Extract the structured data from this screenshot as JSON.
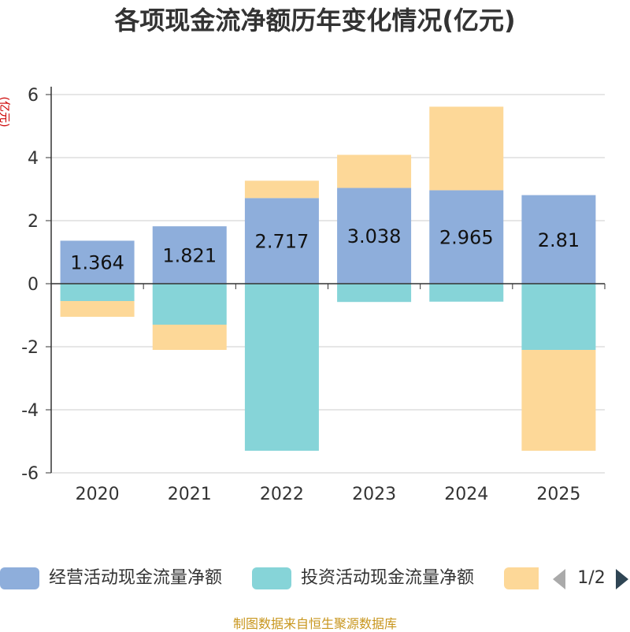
{
  "chart_data": {
    "type": "bar",
    "stacked": true,
    "title": "各项现金流净额历年变化情况(亿元)",
    "ylabel": "(亿元)",
    "ylim": [
      -6,
      6
    ],
    "yticks": [
      6,
      4,
      2,
      0,
      -2,
      -4,
      -6
    ],
    "ytick_labels": [
      "6",
      "4",
      "2",
      "0",
      "-2",
      "-4",
      "-6"
    ],
    "grid": true,
    "categories": [
      "2020",
      "2021",
      "2022",
      "2023",
      "2024",
      "2025"
    ],
    "series": [
      {
        "name": "经营活动现金流量净额",
        "color": "#8eaedb",
        "values": [
          1.364,
          1.821,
          2.717,
          3.038,
          2.965,
          2.81
        ],
        "labels": [
          "1.364",
          "1.821",
          "2.717",
          "3.038",
          "2.965",
          "2.81"
        ]
      },
      {
        "name": "投资活动现金流量净额",
        "color": "#86d4d8",
        "values": [
          -0.55,
          -1.3,
          -5.3,
          -0.58,
          -0.57,
          -2.1
        ]
      },
      {
        "name": "",
        "color": "#fdd898",
        "values": [
          -0.5,
          -0.8,
          0.55,
          1.05,
          2.65,
          -3.2
        ]
      }
    ]
  },
  "legend": {
    "items": [
      "经营活动现金流量净额",
      "投资活动现金流量净额",
      ""
    ],
    "page_text": "1/2"
  },
  "footer": {
    "source": "制图数据来自恒生聚源数据库"
  }
}
